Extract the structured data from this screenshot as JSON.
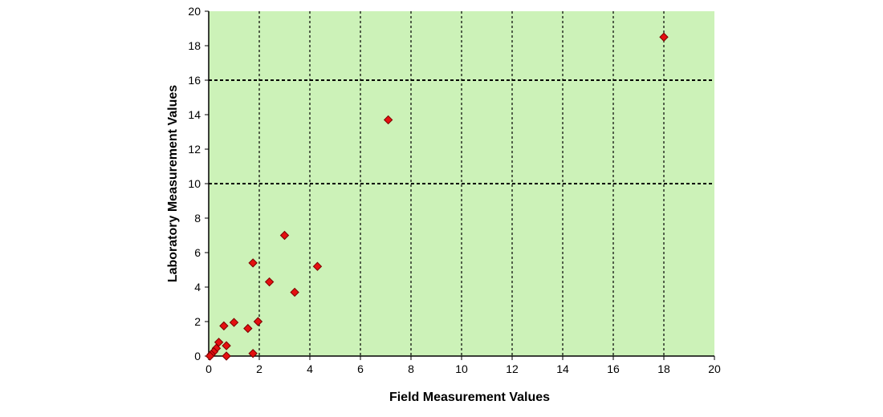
{
  "chart_data": {
    "type": "scatter",
    "title": "",
    "xlabel": "Field Measurement Values",
    "ylabel": "Laboratory Measurement Values",
    "xlim": [
      0,
      20
    ],
    "ylim": [
      0,
      20
    ],
    "x_ticks": [
      0,
      2,
      4,
      6,
      8,
      10,
      12,
      14,
      16,
      18,
      20
    ],
    "y_ticks": [
      0,
      2,
      4,
      6,
      8,
      10,
      12,
      14,
      16,
      18,
      20
    ],
    "x_tick_labels": [
      "0",
      "2",
      "4",
      "6",
      "8",
      "10",
      "12",
      "14",
      "16",
      "18",
      "20"
    ],
    "y_tick_labels": [
      "0",
      "2",
      "4",
      "6",
      "8",
      "10",
      "12",
      "14",
      "16",
      "18",
      "20"
    ],
    "vertical_grid_at": [
      2,
      4,
      6,
      8,
      10,
      12,
      14,
      16,
      18
    ],
    "horizontal_grid_at": [
      10,
      16
    ],
    "grid": true,
    "plot_background": "#ccf2b8",
    "marker_color": "#e41010",
    "marker": "diamond",
    "series": [
      {
        "points": [
          {
            "x": 18.0,
            "y": 18.5
          },
          {
            "x": 7.1,
            "y": 13.7
          },
          {
            "x": 3.0,
            "y": 7.0
          },
          {
            "x": 1.75,
            "y": 5.4
          },
          {
            "x": 4.3,
            "y": 5.2
          },
          {
            "x": 2.4,
            "y": 4.3
          },
          {
            "x": 3.4,
            "y": 3.7
          },
          {
            "x": 1.0,
            "y": 1.95
          },
          {
            "x": 1.95,
            "y": 2.0
          },
          {
            "x": 0.6,
            "y": 1.75
          },
          {
            "x": 1.55,
            "y": 1.6
          },
          {
            "x": 0.4,
            "y": 0.8
          },
          {
            "x": 0.7,
            "y": 0.6
          },
          {
            "x": 0.3,
            "y": 0.45
          },
          {
            "x": 0.2,
            "y": 0.25
          },
          {
            "x": 0.1,
            "y": 0.1
          },
          {
            "x": 0.05,
            "y": 0.0
          },
          {
            "x": 0.7,
            "y": 0.0
          },
          {
            "x": 1.75,
            "y": 0.15
          }
        ]
      }
    ]
  }
}
